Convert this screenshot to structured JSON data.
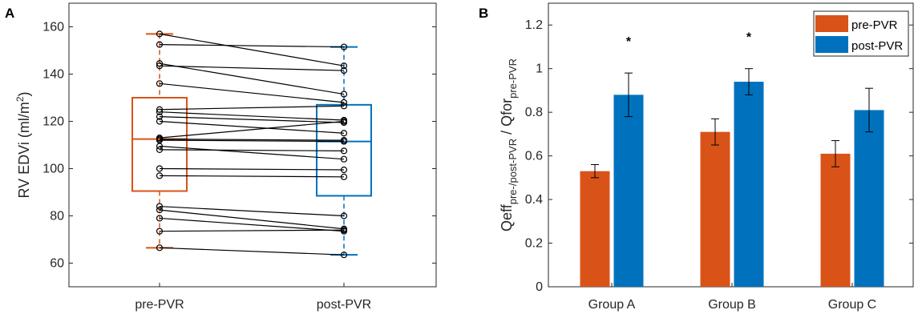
{
  "chart_data": [
    {
      "panel_label": "A",
      "type": "boxplot-paired",
      "ylabel": "RV EDVi (ml/m²)",
      "ylabel_parts": {
        "main": "RV EDVi (ml/m",
        "sup": "2",
        "end": ")"
      },
      "categories": [
        "pre-PVR",
        "post-PVR"
      ],
      "ylim": [
        50,
        170
      ],
      "yticks": [
        60,
        80,
        100,
        120,
        140,
        160
      ],
      "series_colors": [
        "#D95319",
        "#0072BD"
      ],
      "boxes": [
        {
          "name": "pre-PVR",
          "whisker_low": 66.5,
          "q1": 90.5,
          "median": 112.5,
          "q3": 130,
          "whisker_high": 157
        },
        {
          "name": "post-PVR",
          "whisker_low": 63.5,
          "q1": 88.5,
          "median": 111.5,
          "q3": 127,
          "whisker_high": 151.5
        }
      ],
      "pairs": [
        [
          157,
          143.5
        ],
        [
          152.5,
          151.5
        ],
        [
          144.5,
          131.5
        ],
        [
          143.5,
          141.5
        ],
        [
          136,
          128
        ],
        [
          125,
          126.5
        ],
        [
          124,
          120.5
        ],
        [
          122,
          119.5
        ],
        [
          120,
          115
        ],
        [
          113,
          120
        ],
        [
          112.5,
          112
        ],
        [
          112,
          111.5
        ],
        [
          109.5,
          104
        ],
        [
          108,
          107.5
        ],
        [
          100,
          99.5
        ],
        [
          97,
          96.5
        ],
        [
          84,
          80
        ],
        [
          82.5,
          74.5
        ],
        [
          79,
          73.5
        ],
        [
          73.5,
          74
        ],
        [
          66.5,
          63.5
        ]
      ]
    },
    {
      "panel_label": "B",
      "type": "bar",
      "ylabel_main": "Qeff",
      "ylabel_sub1": "pre-/post-PVR",
      "ylabel_mid": " / Qfor",
      "ylabel_sub2": "pre-PVR",
      "categories": [
        "Group A",
        "Group B",
        "Group C"
      ],
      "ylim": [
        0,
        1.3
      ],
      "yticks": [
        "0",
        "0.2",
        "0.4",
        "0.6",
        "0.8",
        "1",
        "1.2"
      ],
      "ytick_values": [
        0,
        0.2,
        0.4,
        0.6,
        0.8,
        1.0,
        1.2
      ],
      "series": [
        {
          "name": "pre-PVR",
          "color": "#D95319",
          "values": [
            0.53,
            0.71,
            0.61
          ],
          "errors": [
            0.03,
            0.06,
            0.06
          ]
        },
        {
          "name": "post-PVR",
          "color": "#0072BD",
          "values": [
            0.88,
            0.94,
            0.81
          ],
          "errors": [
            0.1,
            0.06,
            0.1
          ]
        }
      ],
      "significance": [
        {
          "category": "Group A",
          "series": "post-PVR",
          "symbol": "*"
        },
        {
          "category": "Group B",
          "series": "post-PVR",
          "symbol": "*"
        }
      ],
      "legend": {
        "position": "top-right",
        "entries": [
          "pre-PVR",
          "post-PVR"
        ]
      }
    }
  ]
}
